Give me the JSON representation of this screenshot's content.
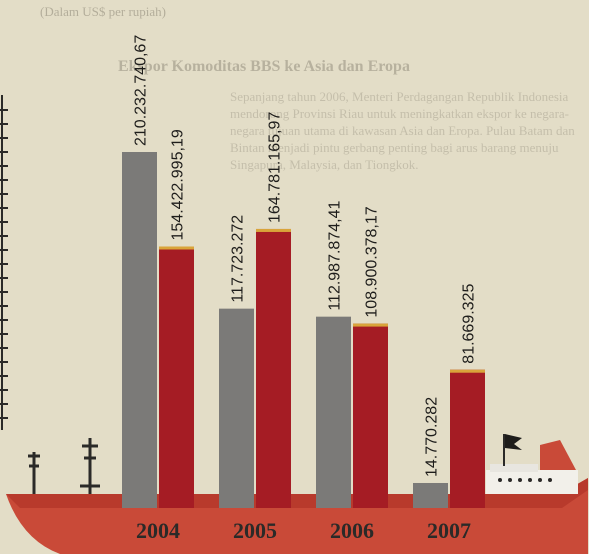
{
  "background": {
    "heading": "(Dalam US$ per rupiah)",
    "subheading": "Ekspor Komoditas BBS ke Asia dan Eropa",
    "paragraph": "Sepanjang tahun 2006, Menteri Perdagangan Republik Indonesia mendorong Provinsi Riau untuk meningkatkan ekspor ke negara-negara tujuan utama di kawasan Asia dan Eropa. Pulau Batam dan Bintan menjadi pintu gerbang penting bagi arus barang menuju Singapura, Malaysia, dan Tiongkok."
  },
  "colors": {
    "background": "#e3ddc7",
    "gray_bar": "#7b7a78",
    "red_bar": "#a51c24",
    "ship_hull": "#c94a38",
    "ship_deck": "#b83a2c",
    "year_text": "#2b2a28",
    "value_text": "#1e1d1b"
  },
  "icons": [
    "ship-icon",
    "flag-icon",
    "mast-icon",
    "ladder-icon"
  ],
  "chart_data": {
    "type": "bar",
    "categories": [
      "2004",
      "2005",
      "2006",
      "2007"
    ],
    "series": [
      {
        "color": "#7b7a78",
        "values": [
          210232740.67,
          117723272,
          112987874.41,
          14770282
        ],
        "labels": [
          "210.232.740,67",
          "117.723.272",
          "112.987.874,41",
          "14.770.282"
        ]
      },
      {
        "color": "#a51c24",
        "values": [
          154422995.19,
          164781165.97,
          108900378.17,
          81669325
        ],
        "labels": [
          "154.422.995,19",
          "164.781.165,97",
          "108.900.378,17",
          "81.669.325"
        ]
      }
    ],
    "ylim": [
      0,
      210232740.67
    ],
    "grid": false,
    "legend": "none"
  }
}
